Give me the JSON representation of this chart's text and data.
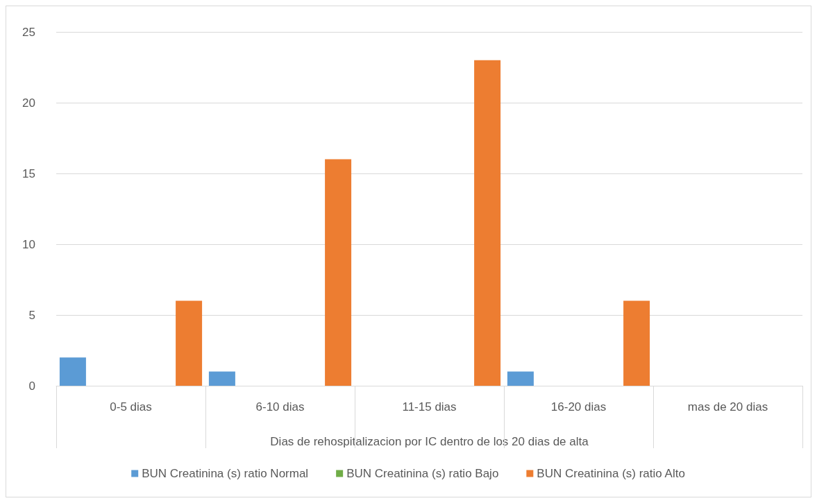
{
  "chart_data": {
    "type": "bar",
    "xlabel": "Dias de rehospitalizacion por IC dentro de los 20 dias de alta",
    "categories": [
      "0-5 dias",
      "6-10 dias",
      "11-15 dias",
      "16-20 dias",
      "mas de 20 dias"
    ],
    "series": [
      {
        "name": "BUN Creatinina (s) ratio Normal",
        "color": "#5b9bd5",
        "values": [
          2,
          1,
          0,
          1,
          0
        ]
      },
      {
        "name": "BUN Creatinina (s) ratio Bajo",
        "color": "#70ad47",
        "values": [
          0,
          0,
          0,
          0,
          0
        ]
      },
      {
        "name": "BUN Creatinina (s) ratio Alto",
        "color": "#ed7d31",
        "values": [
          6,
          16,
          23,
          6,
          0
        ]
      }
    ],
    "ylim": [
      0,
      25
    ],
    "yticks": [
      0,
      5,
      10,
      15,
      20,
      25
    ],
    "grid": "y",
    "legend": "bottom"
  }
}
